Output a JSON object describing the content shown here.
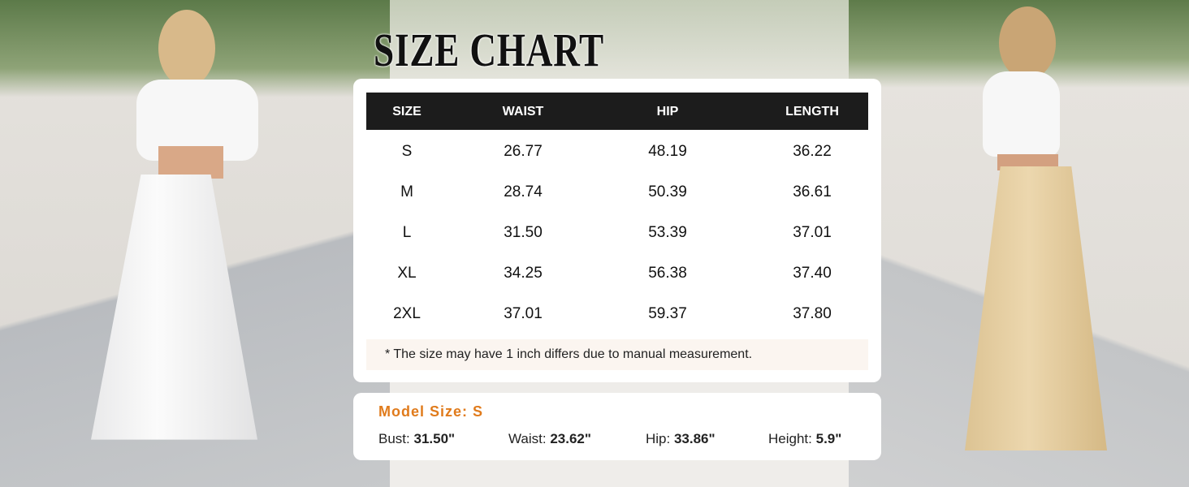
{
  "title": "SIZE CHART",
  "table": {
    "headers": [
      "SIZE",
      "WAIST",
      "HIP",
      "LENGTH"
    ],
    "rows": [
      [
        "S",
        "26.77",
        "48.19",
        "36.22"
      ],
      [
        "M",
        "28.74",
        "50.39",
        "36.61"
      ],
      [
        "L",
        "31.50",
        "53.39",
        "37.01"
      ],
      [
        "XL",
        "34.25",
        "56.38",
        "37.40"
      ],
      [
        "2XL",
        "37.01",
        "59.37",
        "37.80"
      ]
    ],
    "note": "* The size may have 1 inch differs due to manual measurement."
  },
  "model": {
    "heading": "Model Size: S",
    "measurements": [
      {
        "label": "Bust:",
        "value": "31.50\""
      },
      {
        "label": "Waist:",
        "value": "23.62\""
      },
      {
        "label": "Hip:",
        "value": "33.86\""
      },
      {
        "label": "Height:",
        "value": "5.9\""
      }
    ]
  },
  "colors": {
    "header_bg": "#1c1c1c",
    "accent": "#e07b1c",
    "note_bg": "#fbf5f0"
  }
}
